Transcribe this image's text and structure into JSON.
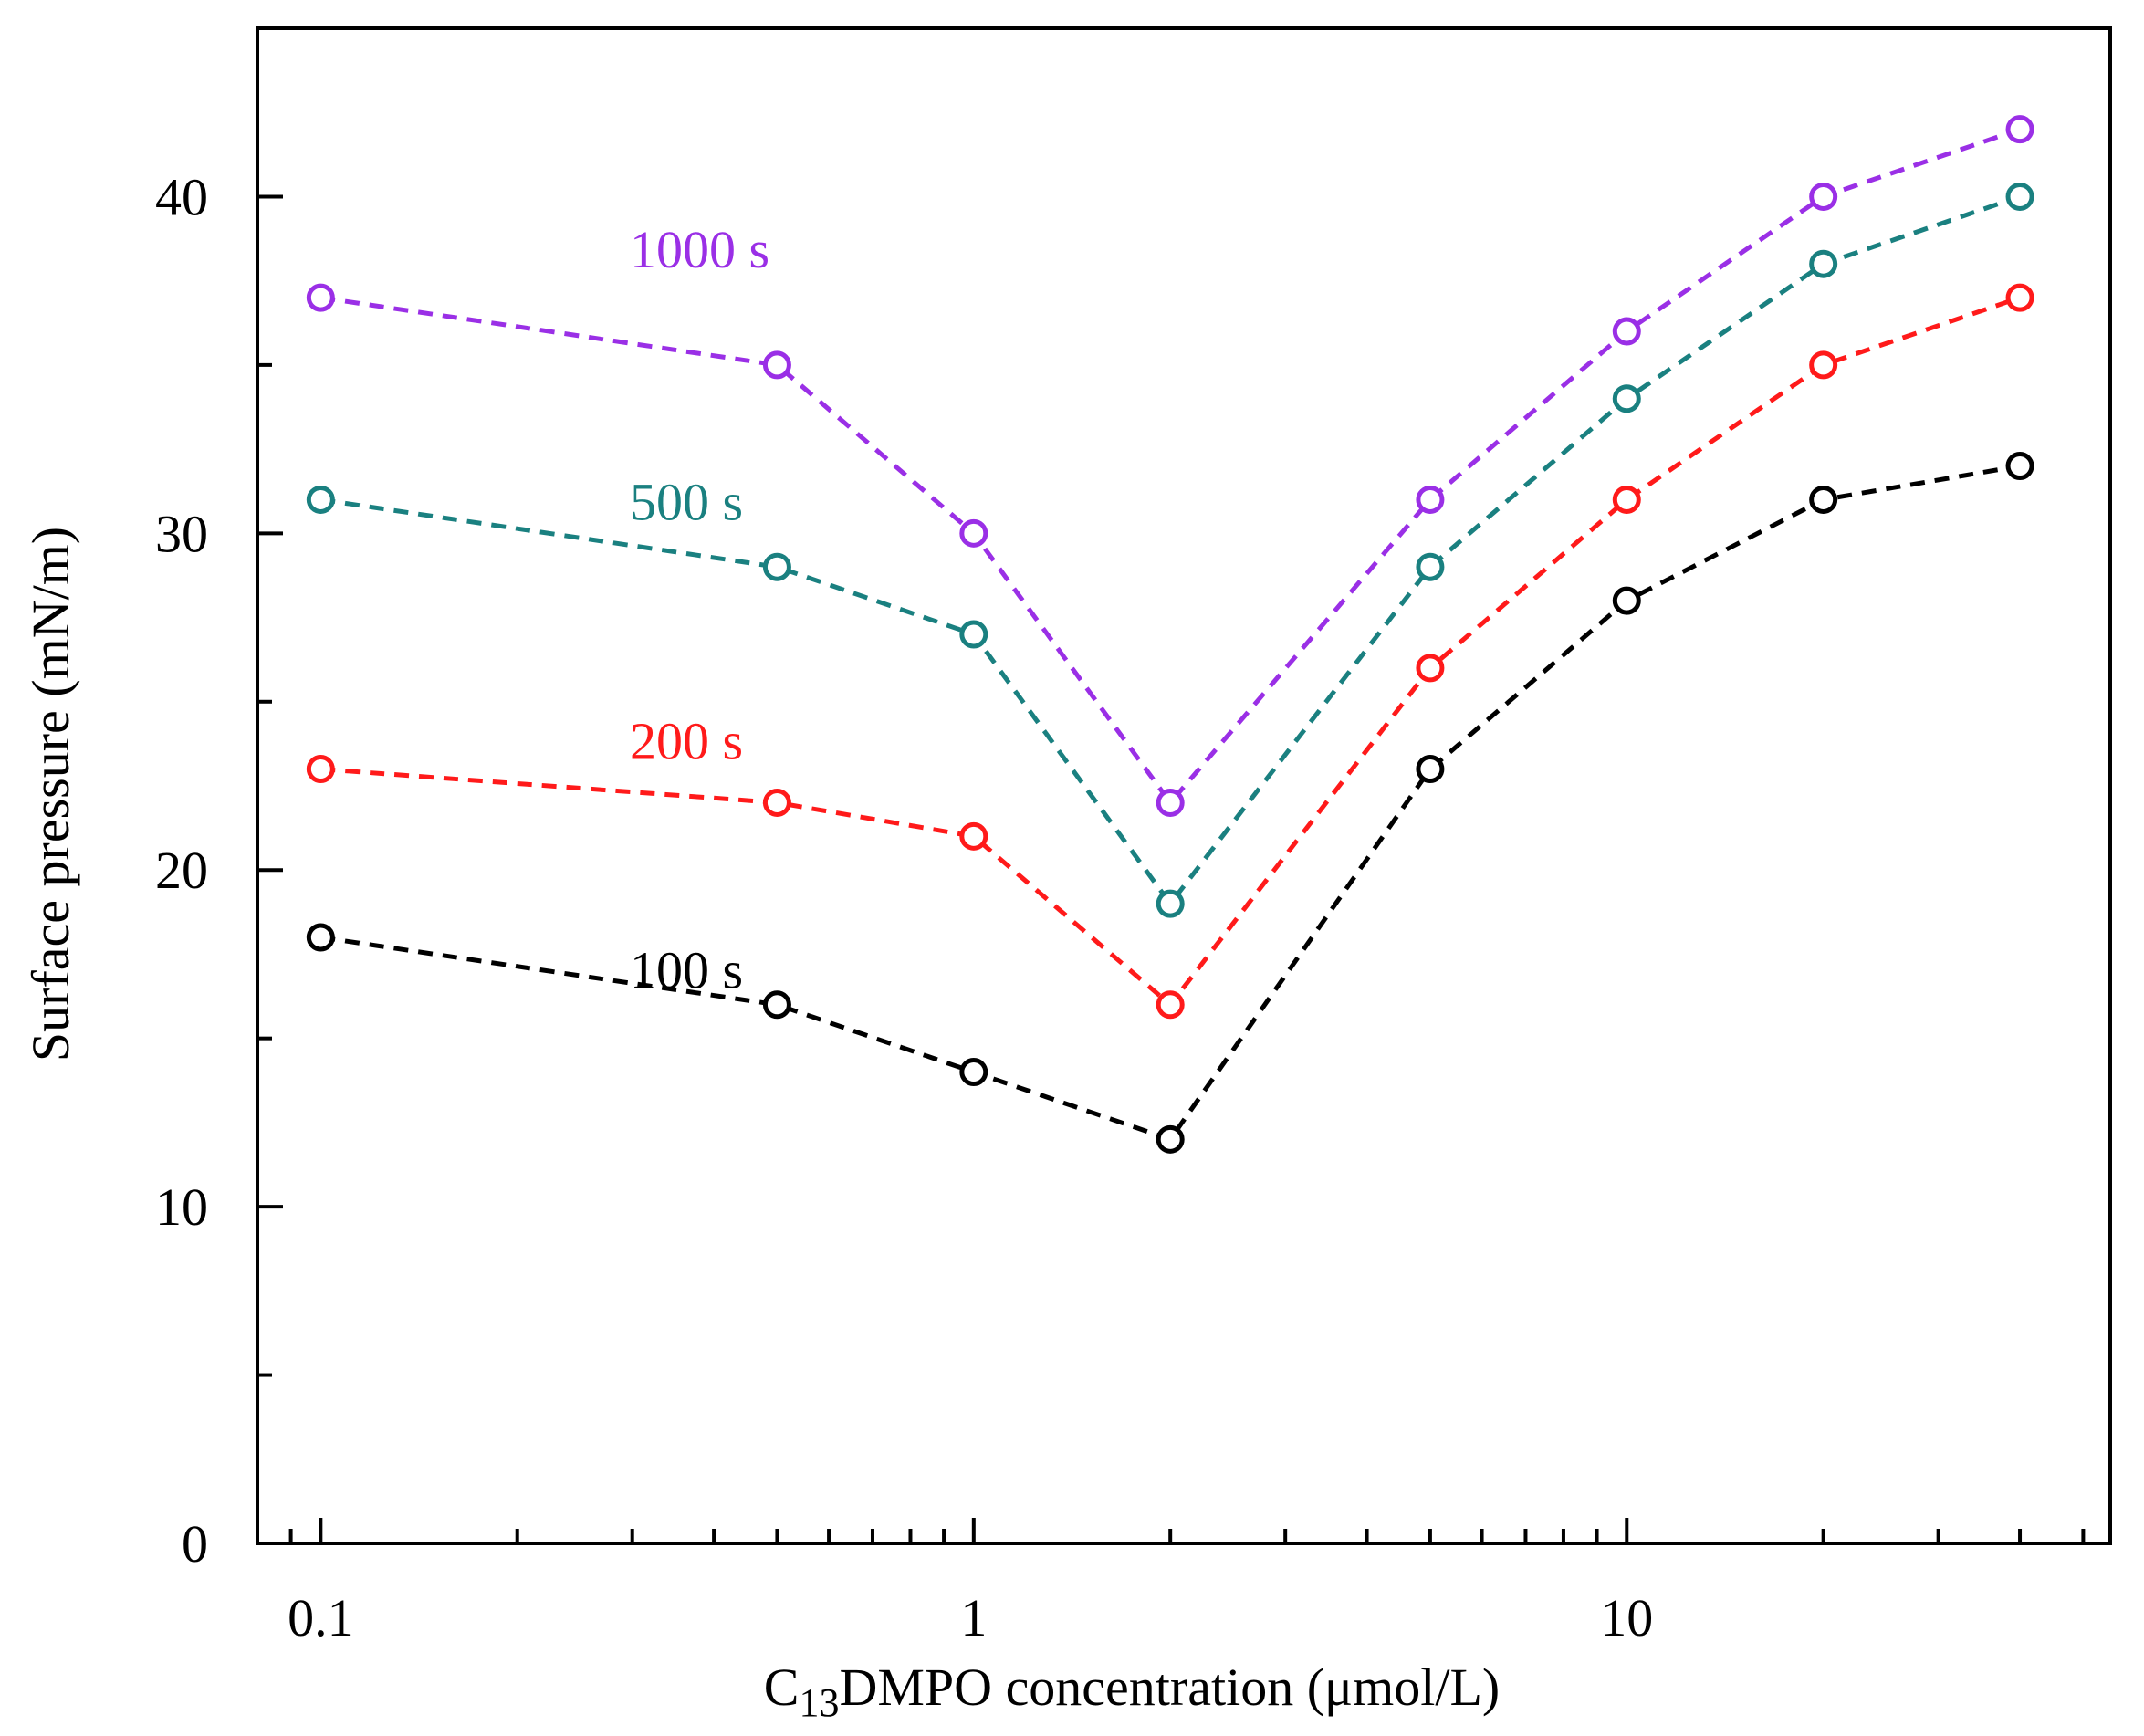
{
  "chart_data": {
    "type": "line",
    "title": "",
    "xlabel": {
      "prefix": "C",
      "subscript": "13",
      "suffix": "DMPO concentration (μmol/L)"
    },
    "ylabel": "Surface pressure (mN/m)",
    "xscale": "log",
    "xlim": [
      0.08,
      55
    ],
    "ylim": [
      0,
      45
    ],
    "x_tick_labels": [
      "0.1",
      "1",
      "10"
    ],
    "y_tick_labels": [
      "0",
      "10",
      "20",
      "30",
      "40"
    ],
    "grid": false,
    "legend": "inline labels",
    "x": [
      0.1,
      0.5,
      1,
      2,
      5,
      10,
      20,
      40
    ],
    "series": [
      {
        "name": "100 s",
        "color": "#000000",
        "values": [
          18,
          16,
          14,
          12,
          23,
          28,
          31,
          32
        ]
      },
      {
        "name": "200 s",
        "color": "#ff1a1a",
        "values": [
          23,
          22,
          21,
          16,
          26,
          31,
          35,
          37
        ]
      },
      {
        "name": "500 s",
        "color": "#1a8080",
        "values": [
          31,
          29,
          27,
          19,
          29,
          34,
          38,
          40
        ]
      },
      {
        "name": "1000 s",
        "color": "#9a2fe6",
        "values": [
          37,
          35,
          30,
          22,
          31,
          36,
          40,
          42
        ]
      }
    ]
  }
}
